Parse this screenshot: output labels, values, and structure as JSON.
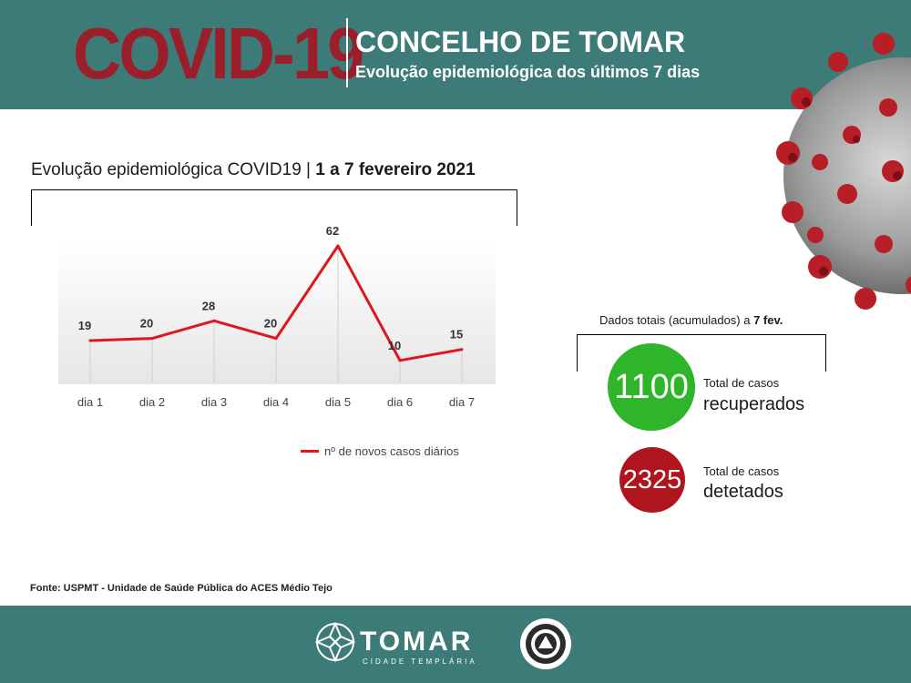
{
  "header": {
    "covid_title": "COVID-19",
    "region": "CONCELHO DE TOMAR",
    "subtitle": "Evolução epidemiológica dos últimos 7 dias"
  },
  "chart_heading": {
    "prefix": "Evolução epidemiológica COVID19 | ",
    "period": "1 a 7 fevereiro 2021"
  },
  "chart_data": {
    "type": "line",
    "categories": [
      "dia 1",
      "dia 2",
      "dia 3",
      "dia 4",
      "dia 5",
      "dia 6",
      "dia 7"
    ],
    "series": [
      {
        "name": "nº de novos casos diários",
        "values": [
          19,
          20,
          28,
          20,
          62,
          10,
          15
        ],
        "color": "#e0161e"
      }
    ],
    "ylim": [
      0,
      62
    ],
    "grid": false,
    "legend": "bottom"
  },
  "totals": {
    "heading_prefix": "Dados totais (acumulados) a ",
    "heading_date": "7 fev.",
    "recovered_value": "1100",
    "recovered_label_small": "Total de casos",
    "recovered_label_big": "recuperados",
    "detected_value": "2325",
    "detected_label_small": "Total de casos",
    "detected_label_big": "detetados"
  },
  "source": "Fonte: USPMT - Unidade de Saúde Pública do ACES Médio Tejo",
  "footer": {
    "brand": "TOMAR",
    "brand_sub": "CIDADE TEMPLÁRIA"
  },
  "colors": {
    "teal": "#3d7b78",
    "title_red": "#9b1f2a",
    "line_red": "#e0161e",
    "green": "#2fb52a",
    "dark_red": "#b0141c"
  },
  "icons": [
    "coronavirus-illustration",
    "templar-cross-emblem",
    "civil-protection-seal"
  ]
}
